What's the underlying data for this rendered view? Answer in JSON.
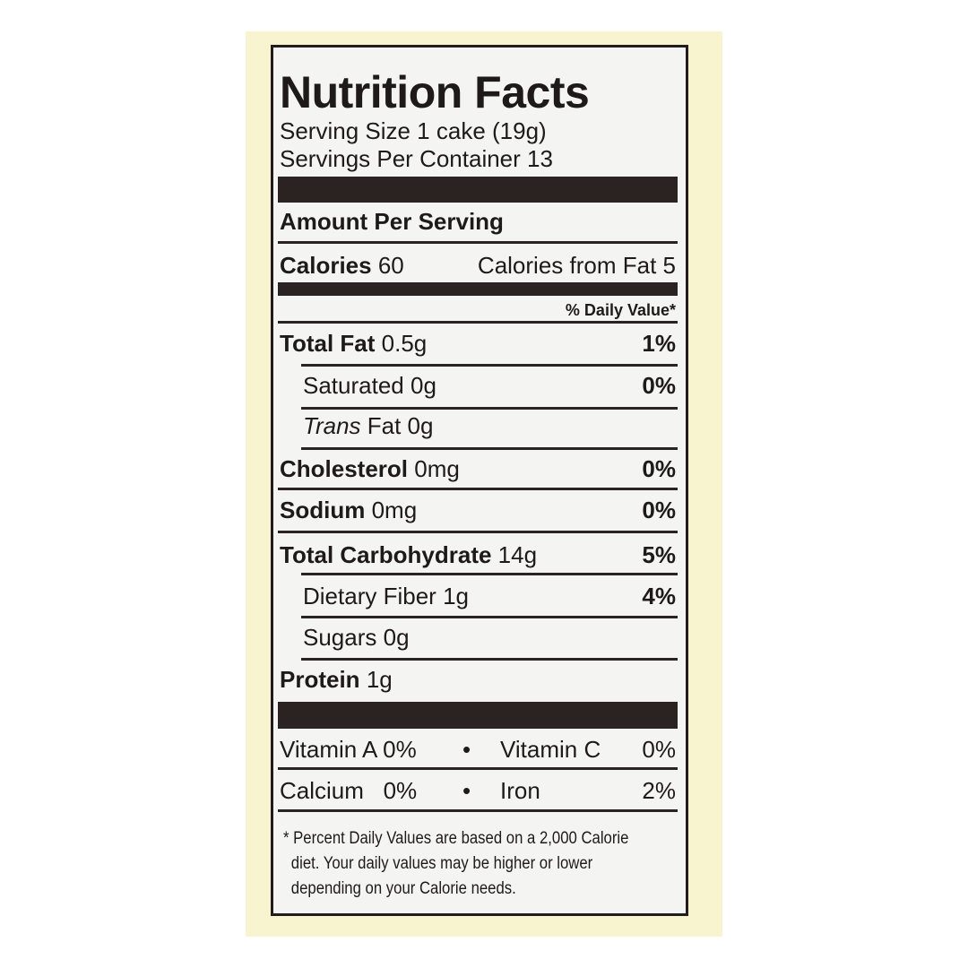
{
  "title": "Nutrition Facts",
  "serving_size": "Serving Size 1 cake (19g)",
  "servings_per_container": "Servings Per Container 13",
  "amount_per_serving": "Amount Per Serving",
  "calories": {
    "label": "Calories",
    "value": "60",
    "from_fat": "Calories from Fat 5"
  },
  "daily_value_header": "% Daily Value*",
  "nutrients": [
    {
      "label": "Total Fat",
      "amount": "0.5g",
      "dv": "1%",
      "bold": true,
      "indent": false
    },
    {
      "label": "Saturated",
      "amount": "0g",
      "dv": "0%",
      "bold": false,
      "indent": true
    },
    {
      "label": "Trans",
      "amount": "Fat 0g",
      "dv": "",
      "bold": false,
      "indent": true,
      "italic": true
    },
    {
      "label": "Cholesterol",
      "amount": "0mg",
      "dv": "0%",
      "bold": true,
      "indent": false
    },
    {
      "label": "Sodium",
      "amount": "0mg",
      "dv": "0%",
      "bold": true,
      "indent": false
    },
    {
      "label": "Total Carbohydrate",
      "amount": "14g",
      "dv": "5%",
      "bold": true,
      "indent": false
    },
    {
      "label": "Dietary Fiber",
      "amount": "1g",
      "dv": "4%",
      "bold": false,
      "indent": true
    },
    {
      "label": "Sugars",
      "amount": "0g",
      "dv": "",
      "bold": false,
      "indent": true
    },
    {
      "label": "Protein",
      "amount": "1g",
      "dv": "",
      "bold": true,
      "indent": false
    }
  ],
  "vitamins": [
    {
      "left": "Vitamin A 0%",
      "bullet": "•",
      "right_label": "Vitamin C",
      "right_value": "0%"
    },
    {
      "left": "Calcium   0%",
      "bullet": "•",
      "right_label": "Iron",
      "right_value": "2%"
    }
  ],
  "footnote": [
    "* Percent Daily Values are based on a 2,000 Calorie",
    "diet. Your daily values may be higher or lower",
    "depending on your Calorie needs."
  ]
}
